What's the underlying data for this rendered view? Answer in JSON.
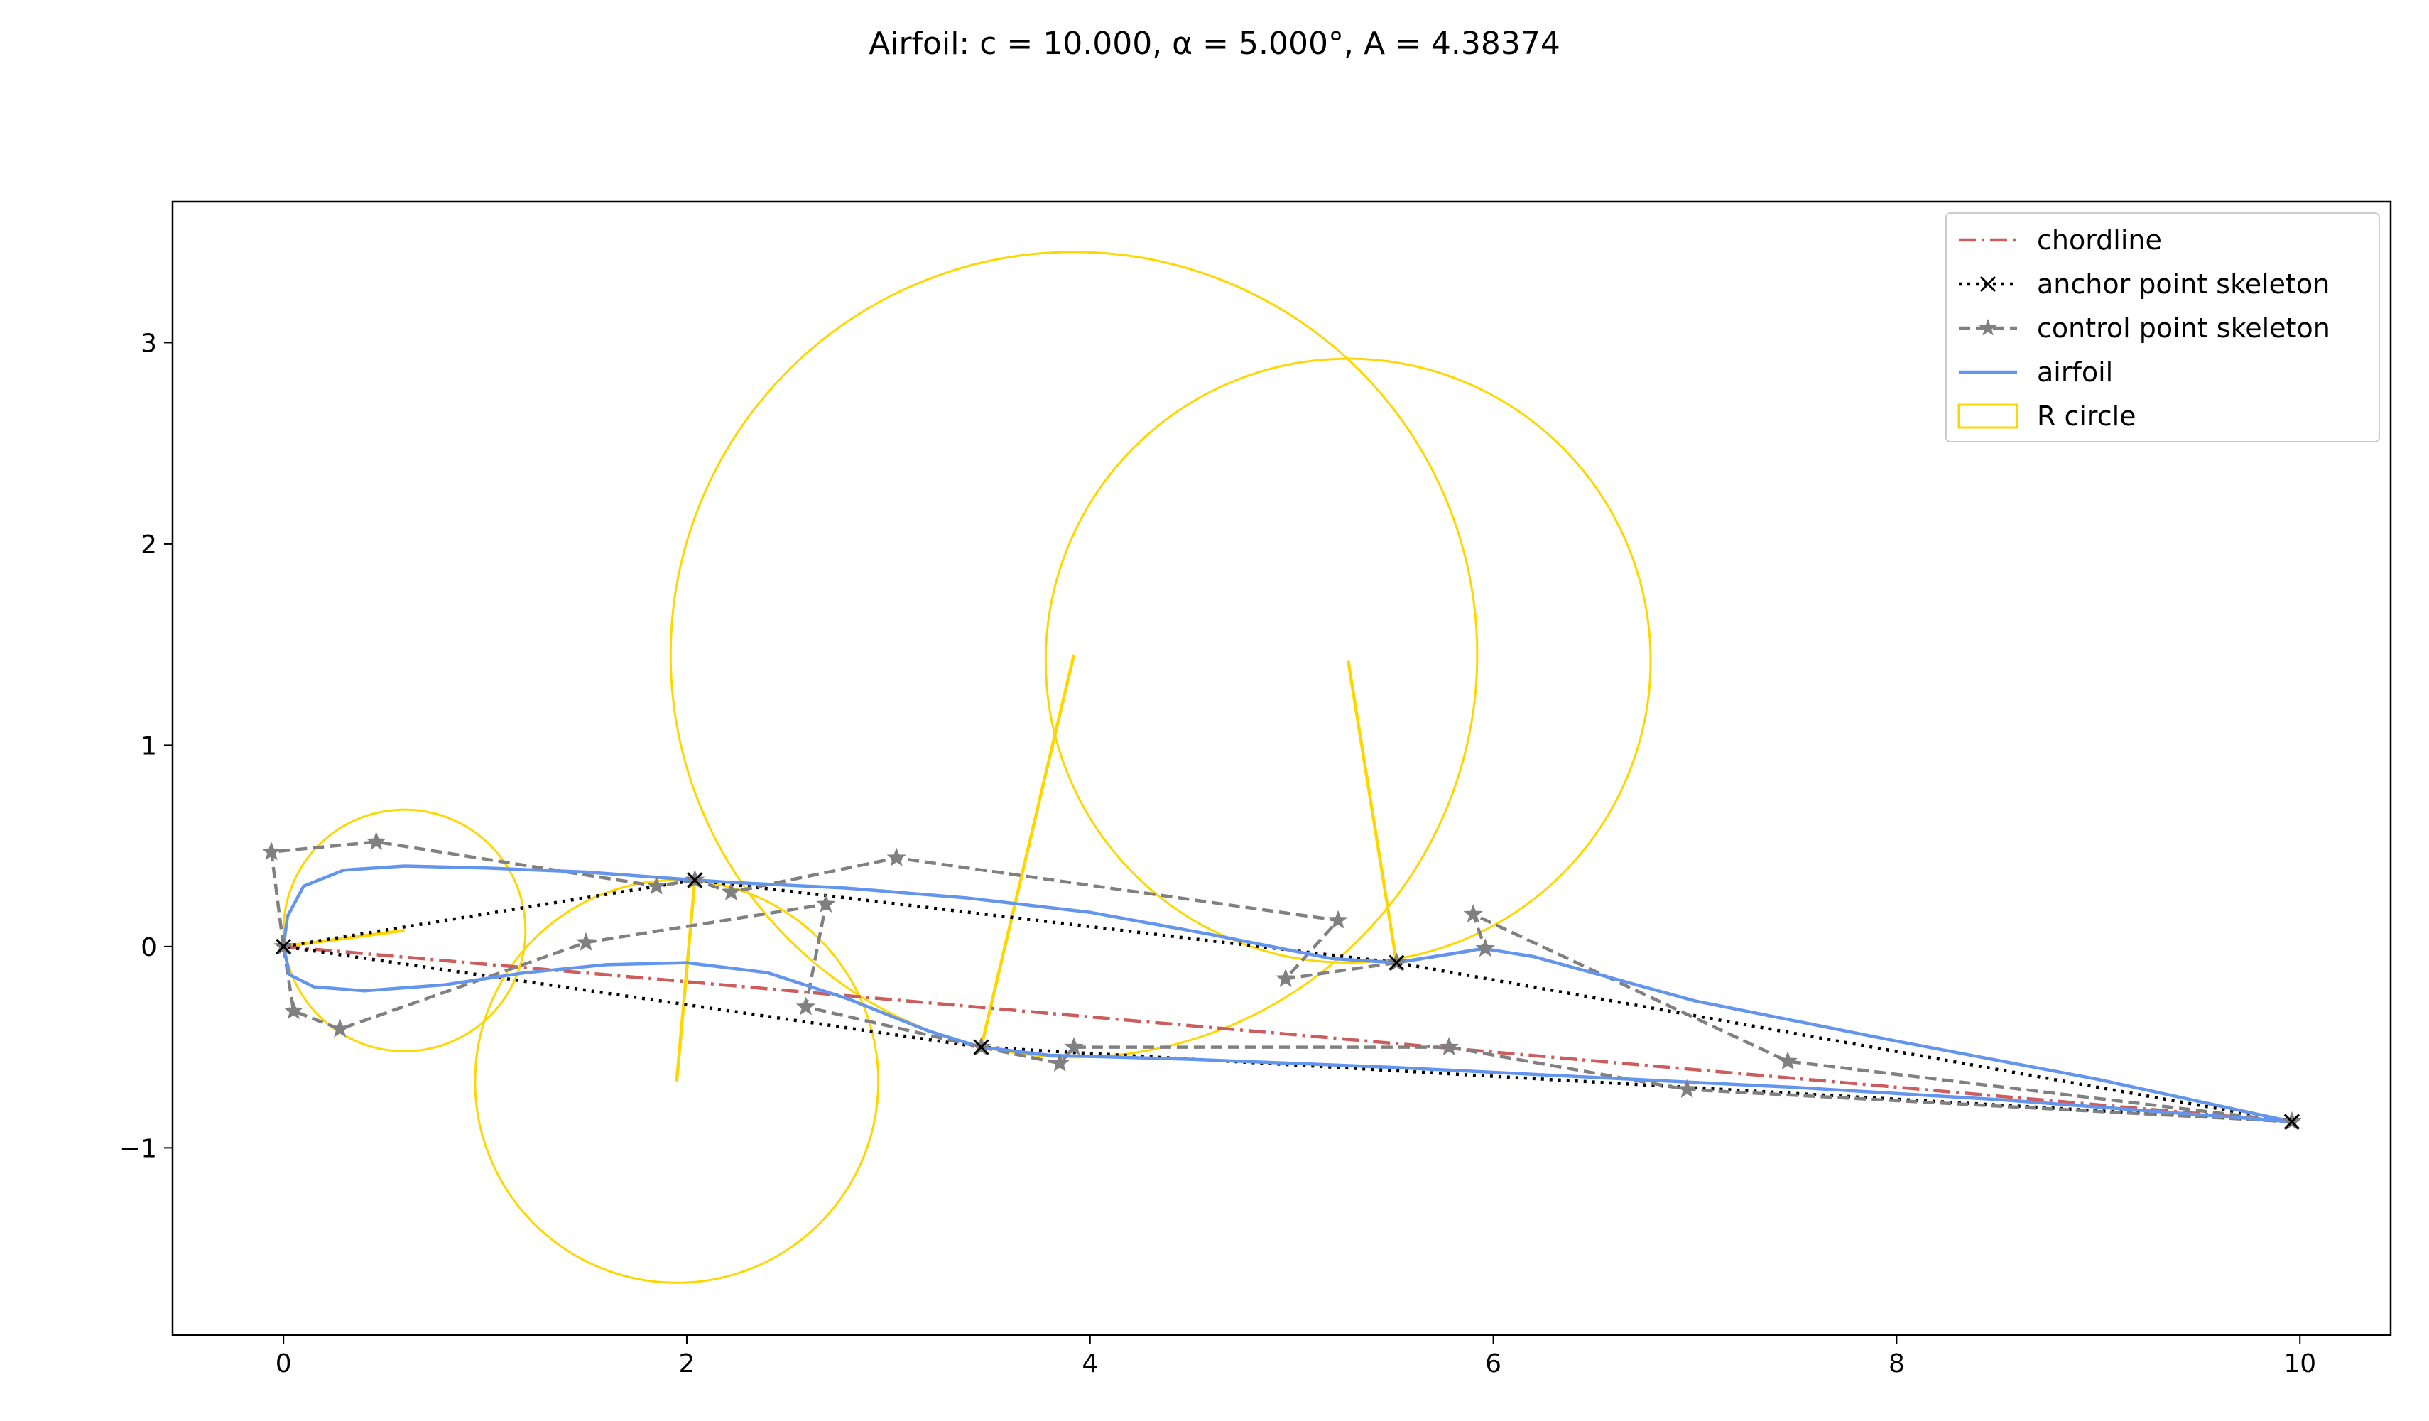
{
  "chart_data": {
    "type": "line",
    "title": "Airfoil: c = 10.000, α = 5.000°, A = 4.38374",
    "xlabel": "",
    "ylabel": "",
    "xlim": [
      -0.55,
      10.45
    ],
    "ylim": [
      -1.93,
      3.7
    ],
    "xticks": [
      0,
      2,
      4,
      6,
      8,
      10
    ],
    "xtick_labels": [
      "0",
      "2",
      "4",
      "6",
      "8",
      "10"
    ],
    "yticks": [
      -1,
      0,
      1,
      2,
      3
    ],
    "ytick_labels": [
      "−1",
      "0",
      "1",
      "2",
      "3"
    ],
    "grid": false,
    "legend_position": "top-right",
    "colors": {
      "chordline": "#cd5c5c",
      "anchor": "#000000",
      "control": "#808080",
      "airfoil": "#6495ed",
      "rcircle": "#ffd700"
    },
    "series": [
      {
        "name": "chordline",
        "style": "dashdot",
        "x": [
          0,
          9.96
        ],
        "y": [
          0,
          -0.87
        ]
      },
      {
        "name": "anchor point skeleton",
        "style": "dotted",
        "marker": "x",
        "x": [
          9.96,
          5.52,
          2.04,
          0,
          3.46,
          9.96
        ],
        "y": [
          -0.87,
          -0.08,
          0.33,
          0,
          -0.5,
          -0.87
        ]
      },
      {
        "name": "control point skeleton",
        "style": "dashed",
        "marker": "star",
        "segments": [
          {
            "x": [
              9.96,
              7.46,
              5.9,
              5.96,
              5.52
            ],
            "y": [
              -0.87,
              -0.57,
              0.16,
              -0.01,
              -0.08
            ]
          },
          {
            "x": [
              5.52,
              4.97,
              5.23,
              3.04,
              2.22,
              2.04
            ],
            "y": [
              -0.08,
              -0.16,
              0.13,
              0.44,
              0.27,
              0.33
            ]
          },
          {
            "x": [
              2.04,
              1.85,
              0.46,
              -0.06,
              0
            ],
            "y": [
              0.33,
              0.3,
              0.52,
              0.47,
              0
            ]
          },
          {
            "x": [
              0,
              0.05,
              0.28,
              1.5,
              2.69,
              2.59,
              3.46
            ],
            "y": [
              0,
              -0.32,
              -0.41,
              0.02,
              0.21,
              -0.3,
              -0.5
            ]
          },
          {
            "x": [
              3.46,
              3.85,
              3.92,
              5.78,
              6.96,
              9.96
            ],
            "y": [
              -0.5,
              -0.58,
              -0.5,
              -0.5,
              -0.71,
              -0.87
            ]
          }
        ]
      },
      {
        "name": "airfoil",
        "style": "solid",
        "x": [
          9.96,
          9.0,
          8.0,
          7.0,
          6.2,
          5.95,
          5.52,
          5.2,
          4.6,
          4.0,
          3.4,
          2.8,
          2.2,
          2.04,
          1.5,
          1.0,
          0.6,
          0.3,
          0.1,
          0.02,
          0,
          0.03,
          0.15,
          0.4,
          0.8,
          1.2,
          1.6,
          2.0,
          2.4,
          2.8,
          3.2,
          3.46,
          3.8,
          4.5,
          5.5,
          6.5,
          7.5,
          8.5,
          9.3,
          9.96
        ],
        "y": [
          -0.87,
          -0.66,
          -0.47,
          -0.27,
          -0.05,
          -0.01,
          -0.08,
          -0.06,
          0.06,
          0.17,
          0.24,
          0.29,
          0.32,
          0.33,
          0.37,
          0.39,
          0.4,
          0.38,
          0.3,
          0.15,
          0,
          -0.14,
          -0.2,
          -0.22,
          -0.19,
          -0.13,
          -0.09,
          -0.08,
          -0.13,
          -0.26,
          -0.42,
          -0.5,
          -0.54,
          -0.56,
          -0.6,
          -0.65,
          -0.7,
          -0.76,
          -0.82,
          -0.87
        ]
      }
    ],
    "r_circles": {
      "name": "R circle",
      "items": [
        {
          "cx": 0.6,
          "cy": 0.08,
          "r": 0.6,
          "px": 0,
          "py": 0
        },
        {
          "cx": 1.95,
          "cy": -0.67,
          "r": 1.0,
          "px": 2.04,
          "py": 0.33
        },
        {
          "cx": 3.92,
          "cy": 1.45,
          "r": 2.0,
          "px": 3.46,
          "py": -0.5
        },
        {
          "cx": 5.28,
          "cy": 1.42,
          "r": 1.5,
          "px": 5.52,
          "py": -0.08
        }
      ]
    }
  }
}
